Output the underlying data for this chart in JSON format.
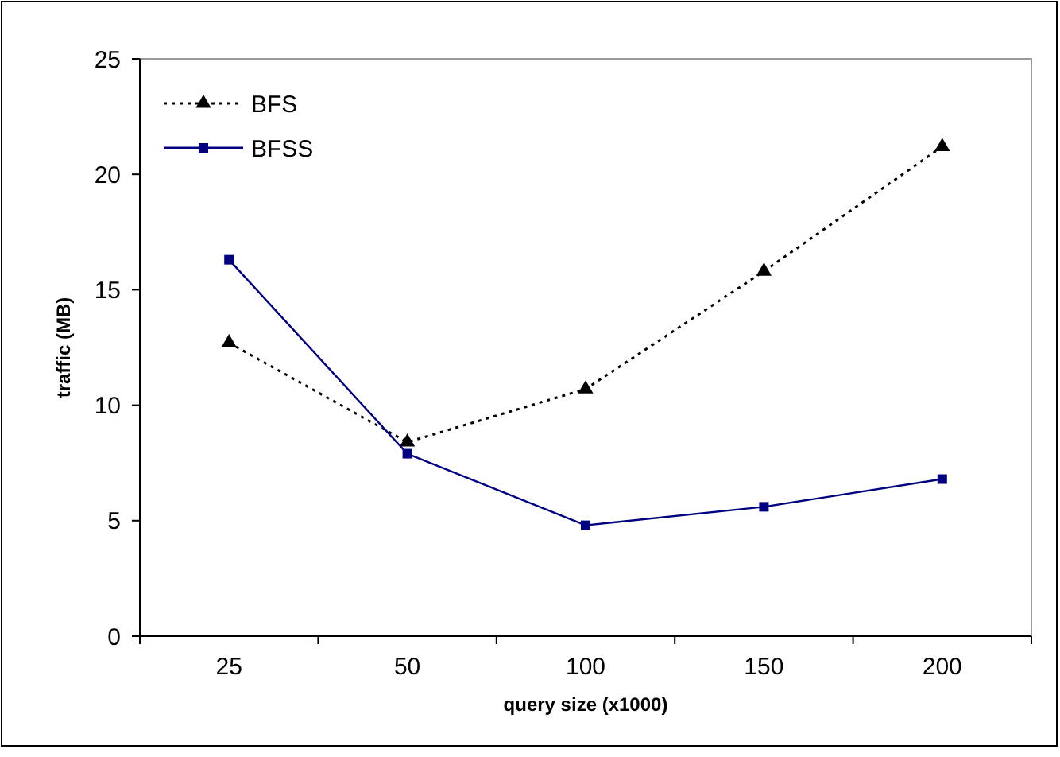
{
  "chart_data": {
    "type": "line",
    "xlabel": "query size (x1000)",
    "ylabel": "traffic (MB)",
    "categories": [
      "25",
      "50",
      "100",
      "150",
      "200"
    ],
    "ylim": [
      0,
      25
    ],
    "yticks": [
      0,
      5,
      10,
      15,
      20,
      25
    ],
    "grid": false,
    "legend": "top left",
    "series": [
      {
        "name": "BFS",
        "color": "#000000",
        "values": [
          12.7,
          8.4,
          10.7,
          15.8,
          21.2
        ],
        "marker": "triangle",
        "line_style": "dotted"
      },
      {
        "name": "BFSS",
        "color": "#000080",
        "values": [
          16.3,
          7.9,
          4.8,
          5.6,
          6.8
        ],
        "marker": "square",
        "line_style": "solid"
      }
    ]
  }
}
